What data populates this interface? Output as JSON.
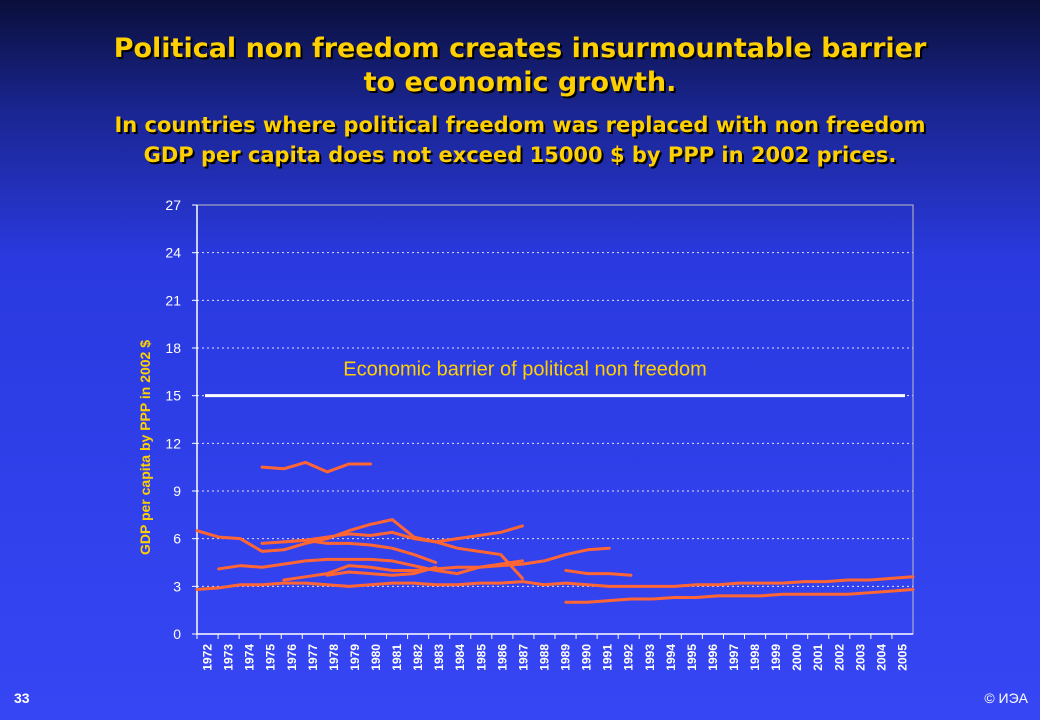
{
  "title_line1": "Political non freedom creates insurmountable barrier",
  "title_line2": "to economic growth.",
  "subtitle_line1": "In countries where political freedom was replaced with non freedom",
  "subtitle_line2": "GDP per capita does not exceed 15000 $ by PPP in 2002 prices.",
  "slide_number": "33",
  "copyright": "© ИЭА",
  "colors": {
    "series": "#ff6633",
    "barrier": "#ffffff",
    "title": "#ffd000",
    "annotation": "#ffd000"
  },
  "chart_data": {
    "type": "line",
    "ylabel": "GDP per capita by PPP in 2002 $",
    "xlabel": "",
    "ylim": [
      0,
      27
    ],
    "yticks": [
      0,
      3,
      6,
      9,
      12,
      15,
      18,
      21,
      24,
      27
    ],
    "xlim": [
      1972,
      2005
    ],
    "x_tick_labels": [
      "1972",
      "1973",
      "1974",
      "1975",
      "1976",
      "1977",
      "1978",
      "1979",
      "1980",
      "1981",
      "1982",
      "1983",
      "1984",
      "1985",
      "1986",
      "1987",
      "1988",
      "1989",
      "1990",
      "1991",
      "1992",
      "1993",
      "1994",
      "1995",
      "1996",
      "1997",
      "1998",
      "1999",
      "2000",
      "2001",
      "2002",
      "2003",
      "2004",
      "2005"
    ],
    "grid": "horizontal dashed",
    "legend": "none",
    "barrier": {
      "label": "Economic barrier of political non freedom",
      "value": 15,
      "x": [
        1972,
        2005
      ]
    },
    "series": [
      {
        "x": [
          1975,
          1976,
          1977,
          1978,
          1979,
          1980
        ],
        "values": [
          10.5,
          10.4,
          10.8,
          10.2,
          10.7,
          10.7
        ]
      },
      {
        "x": [
          1972,
          1973,
          1974,
          1975,
          1976,
          1977,
          1978,
          1979,
          1980,
          1981,
          1982,
          1983,
          1984,
          1985,
          1986,
          1987
        ],
        "values": [
          6.5,
          6.1,
          6.0,
          5.2,
          5.3,
          5.7,
          6.0,
          6.5,
          6.9,
          7.2,
          6.1,
          5.8,
          5.4,
          5.2,
          5.0,
          3.5
        ]
      },
      {
        "x": [
          1975,
          1976,
          1977,
          1978,
          1979,
          1980,
          1981,
          1982,
          1983,
          1984,
          1985,
          1986,
          1987
        ],
        "values": [
          5.7,
          5.8,
          5.9,
          6.1,
          6.3,
          6.2,
          6.4,
          6.0,
          5.8,
          6.0,
          6.2,
          6.4,
          6.8
        ]
      },
      {
        "x": [
          1973,
          1974,
          1975,
          1976,
          1977,
          1978,
          1979,
          1980,
          1981,
          1982,
          1983,
          1984,
          1985,
          1986,
          1987
        ],
        "values": [
          4.1,
          4.3,
          4.2,
          4.4,
          4.6,
          4.7,
          4.7,
          4.7,
          4.6,
          4.3,
          4.0,
          3.8,
          4.2,
          4.4,
          4.6
        ]
      },
      {
        "x": [
          1976,
          1977,
          1978,
          1979,
          1980,
          1981,
          1982,
          1983,
          1984,
          1985,
          1986,
          1987,
          1988,
          1989,
          1990,
          1991
        ],
        "values": [
          3.4,
          3.6,
          3.8,
          4.3,
          4.2,
          4.0,
          4.0,
          4.1,
          4.2,
          4.2,
          4.3,
          4.4,
          4.6,
          5.0,
          5.3,
          5.4
        ]
      },
      {
        "x": [
          1976,
          1977,
          1978,
          1979,
          1980,
          1981,
          1982,
          1983
        ],
        "values": [
          5.8,
          5.9,
          5.7,
          5.7,
          5.6,
          5.4,
          5.0,
          4.5
        ]
      },
      {
        "x": [
          1978,
          1979,
          1980,
          1981,
          1982,
          1983
        ],
        "values": [
          3.7,
          3.9,
          3.8,
          3.7,
          3.8,
          4.2
        ]
      },
      {
        "x": [
          1972,
          1973,
          1974,
          1975,
          1976,
          1977,
          1978,
          1979,
          1980,
          1981,
          1982,
          1983,
          1984,
          1985,
          1986,
          1987,
          1988,
          1989,
          1990,
          1991,
          1992,
          1993,
          1994,
          1995,
          1996,
          1997,
          1998,
          1999,
          2000,
          2001,
          2002,
          2003,
          2004,
          2005
        ],
        "values": [
          2.8,
          2.9,
          3.1,
          3.1,
          3.2,
          3.2,
          3.1,
          3.0,
          3.1,
          3.2,
          3.2,
          3.1,
          3.1,
          3.2,
          3.2,
          3.3,
          3.1,
          3.2,
          3.1,
          3.0,
          3.0,
          3.0,
          3.0,
          3.1,
          3.1,
          3.2,
          3.2,
          3.2,
          3.3,
          3.3,
          3.4,
          3.4,
          3.5,
          3.6
        ]
      },
      {
        "x": [
          1989,
          1990,
          1991,
          1992
        ],
        "values": [
          4.0,
          3.8,
          3.8,
          3.7
        ]
      },
      {
        "x": [
          1989,
          1990,
          1991,
          1992,
          1993,
          1994,
          1995,
          1996,
          1997,
          1998,
          1999,
          2000,
          2001,
          2002,
          2003,
          2004,
          2005
        ],
        "values": [
          2.0,
          2.0,
          2.1,
          2.2,
          2.2,
          2.3,
          2.3,
          2.4,
          2.4,
          2.4,
          2.5,
          2.5,
          2.5,
          2.5,
          2.6,
          2.7,
          2.8
        ]
      }
    ]
  }
}
